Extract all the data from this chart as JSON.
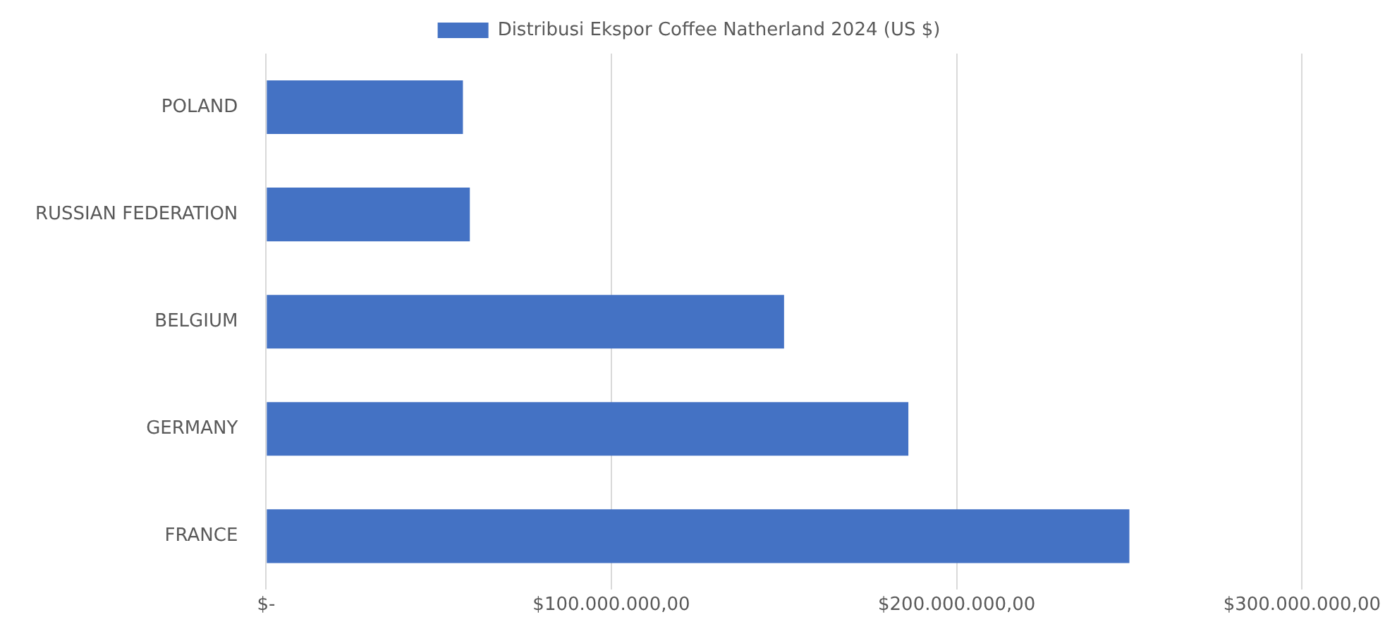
{
  "chart_data": {
    "type": "bar",
    "orientation": "horizontal",
    "categories": [
      "POLAND",
      "RUSSIAN FEDERATION",
      "BELGIUM",
      "GERMANY",
      "FRANCE"
    ],
    "series": [
      {
        "name": "Distribusi Ekspor Coffee Natherland 2024 (US $)",
        "color": "#4472c4",
        "values": [
          57000000,
          59000000,
          150000000,
          186000000,
          250000000
        ]
      }
    ],
    "xlim": [
      0,
      300000000
    ],
    "xticks": [
      {
        "value": 0,
        "label": "$-"
      },
      {
        "value": 100000000,
        "label": "$100.000.000,00"
      },
      {
        "value": 200000000,
        "label": "$200.000.000,00"
      },
      {
        "value": 300000000,
        "label": "$300.000.000,00"
      }
    ],
    "grid": "x",
    "legend": "top"
  }
}
